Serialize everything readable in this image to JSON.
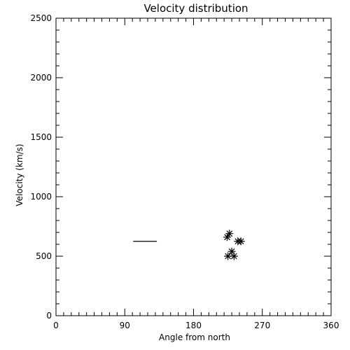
{
  "chart_data": {
    "type": "scatter",
    "title": "Velocity distribution",
    "xlabel": "Angle from north",
    "ylabel": "Velocity (km/s)",
    "xlim": [
      0,
      360
    ],
    "ylim": [
      0,
      2500
    ],
    "x_ticks": [
      0,
      90,
      180,
      270,
      360
    ],
    "y_ticks": [
      0,
      500,
      1000,
      1500,
      2000,
      2500
    ],
    "x_tick_labels": [
      "0",
      "90",
      "180",
      "270",
      "360"
    ],
    "y_tick_labels": [
      "0",
      "500",
      "1000",
      "1500",
      "2000",
      "2500"
    ],
    "x_minor_step": 10,
    "y_minor_step": 100,
    "grid": false,
    "series": [
      {
        "marker": "asterisk",
        "color": "#000000",
        "points": [
          {
            "x": 227,
            "y": 690
          },
          {
            "x": 224,
            "y": 660
          },
          {
            "x": 238,
            "y": 625
          },
          {
            "x": 242,
            "y": 625
          },
          {
            "x": 230,
            "y": 540
          },
          {
            "x": 225,
            "y": 500
          },
          {
            "x": 233,
            "y": 500
          }
        ]
      }
    ],
    "segments": [
      {
        "x1": 101,
        "x2": 132,
        "y": 625,
        "color": "#000000"
      }
    ]
  }
}
